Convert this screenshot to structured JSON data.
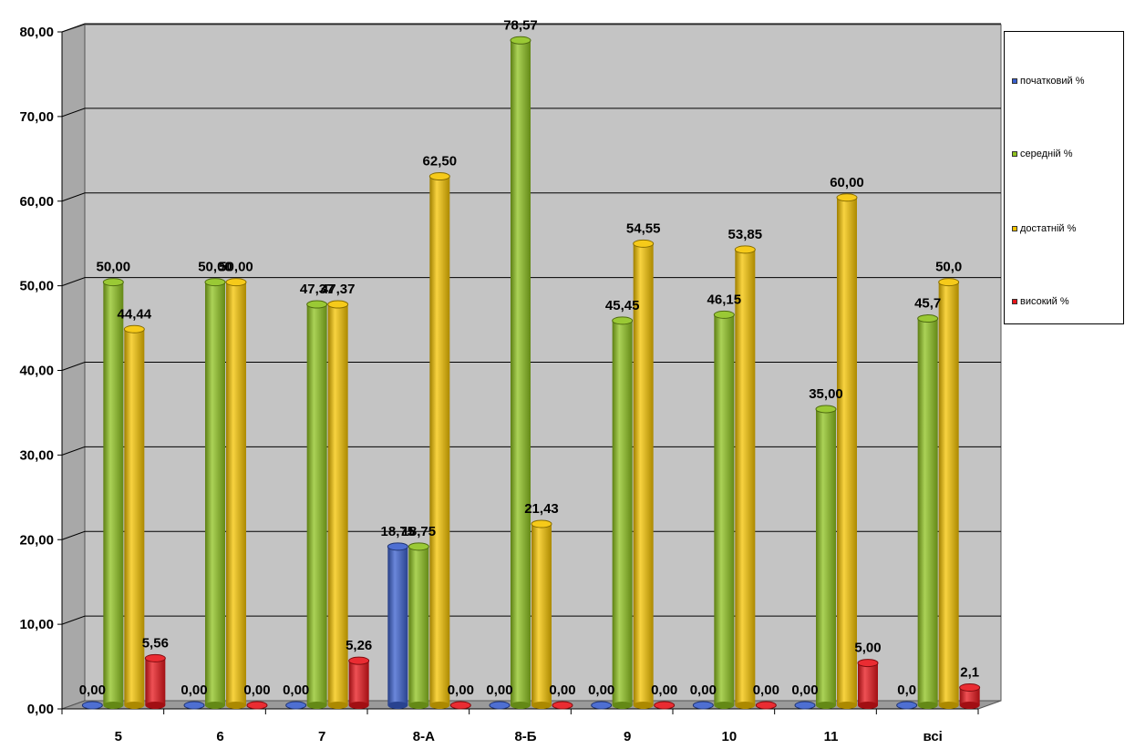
{
  "chart_data": {
    "type": "bar",
    "categories": [
      "5",
      "6",
      "7",
      "8-А",
      "8-Б",
      "9",
      "10",
      "11",
      "всі"
    ],
    "series": [
      {
        "name": "початковий %",
        "color": "#3a5fcd",
        "values": [
          0.0,
          0.0,
          0.0,
          18.75,
          0.0,
          0.0,
          0.0,
          0.0,
          0.0
        ],
        "labels": [
          "0,00",
          "0,00",
          "0,00",
          "18,75",
          "0,00",
          "0,00",
          "0,00",
          "0,00",
          "0,0"
        ]
      },
      {
        "name": "середній %",
        "color": "#8fc31f",
        "values": [
          50.0,
          50.0,
          47.37,
          18.75,
          78.57,
          45.45,
          46.15,
          35.0,
          45.7
        ],
        "labels": [
          "50,00",
          "50,00",
          "47,37",
          "18,75",
          "78,57",
          "45,45",
          "46,15",
          "35,00",
          "45,7"
        ]
      },
      {
        "name": "достатній %",
        "color": "#f5c400",
        "values": [
          44.44,
          50.0,
          47.37,
          62.5,
          21.43,
          54.55,
          53.85,
          60.0,
          50.0
        ],
        "labels": [
          "44,44",
          "50,00",
          "47,37",
          "62,50",
          "21,43",
          "54,55",
          "53,85",
          "60,00",
          "50,0"
        ]
      },
      {
        "name": "високий %",
        "color": "#e8151b",
        "values": [
          5.56,
          0.0,
          5.26,
          0.0,
          0.0,
          0.0,
          0.0,
          5.0,
          2.1
        ],
        "labels": [
          "5,56",
          "0,00",
          "5,26",
          "0,00",
          "0,00",
          "0,00",
          "0,00",
          "5,00",
          "2,1"
        ]
      }
    ],
    "yticks": [
      "0,00",
      "10,00",
      "20,00",
      "30,00",
      "40,00",
      "50,00",
      "60,00",
      "70,00",
      "80,00"
    ],
    "ylim": [
      0,
      80
    ],
    "title": "",
    "xlabel": "",
    "ylabel": "",
    "grid": true,
    "legend_position": "right"
  }
}
